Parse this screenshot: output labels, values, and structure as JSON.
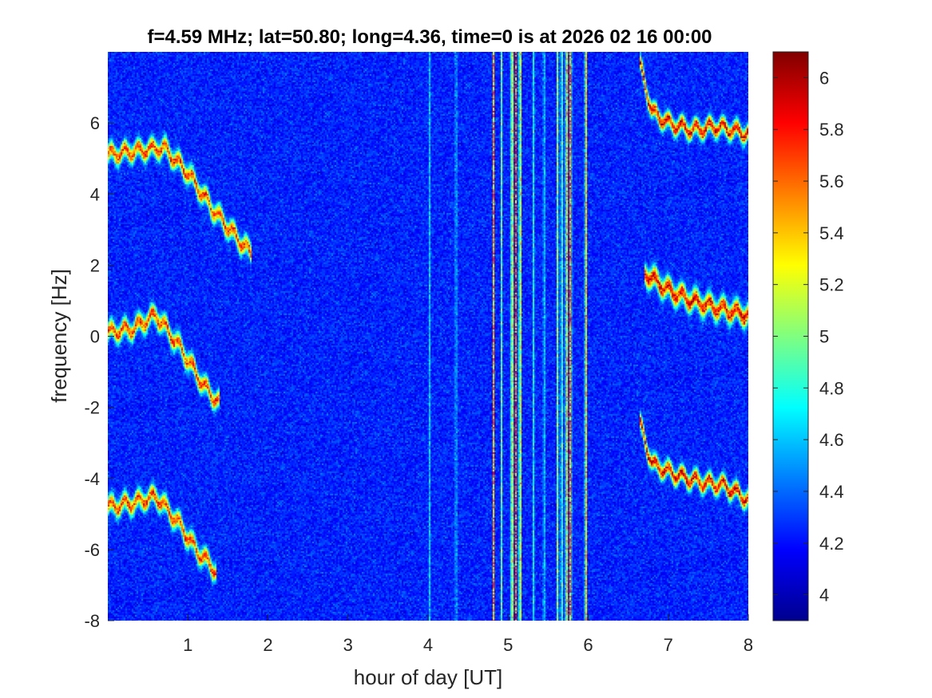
{
  "chart_data": {
    "type": "heatmap",
    "title": "f=4.59 MHz;  lat=50.80; long=4.36, time=0 is at 2026 02 16 00:00",
    "xlabel": "hour of day [UT]",
    "ylabel": "frequency [Hz]",
    "xlim": [
      0,
      8
    ],
    "ylim": [
      -8,
      8
    ],
    "xticks": [
      "1",
      "2",
      "3",
      "4",
      "5",
      "6",
      "7",
      "8"
    ],
    "xtick_values": [
      1,
      2,
      3,
      4,
      5,
      6,
      7,
      8
    ],
    "yticks": [
      "-8",
      "-6",
      "-4",
      "-2",
      "0",
      "2",
      "4",
      "6"
    ],
    "ytick_values": [
      -8,
      -6,
      -4,
      -2,
      0,
      2,
      4,
      6
    ],
    "colorbar": {
      "colormap": "jet",
      "clim": [
        3.9,
        6.1
      ],
      "ticks": [
        "4",
        "4.2",
        "4.4",
        "4.6",
        "4.8",
        "5",
        "5.2",
        "5.4",
        "5.6",
        "5.8",
        "6"
      ],
      "tick_values": [
        4,
        4.2,
        4.4,
        4.6,
        4.8,
        5,
        5.2,
        5.4,
        5.6,
        5.8,
        6
      ]
    },
    "background_level": 4.25,
    "traces": [
      {
        "points": [
          [
            0,
            5.1
          ],
          [
            0.3,
            5.2
          ],
          [
            0.7,
            5.3
          ],
          [
            1.0,
            4.6
          ],
          [
            1.3,
            3.6
          ],
          [
            1.6,
            2.8
          ],
          [
            1.8,
            2.3
          ]
        ],
        "peak": 5.8,
        "width": 0.22
      },
      {
        "points": [
          [
            0,
            0.1
          ],
          [
            0.3,
            0.2
          ],
          [
            0.6,
            0.6
          ],
          [
            0.9,
            -0.3
          ],
          [
            1.2,
            -1.4
          ],
          [
            1.4,
            -1.9
          ]
        ],
        "peak": 5.8,
        "width": 0.22
      },
      {
        "points": [
          [
            0,
            -4.8
          ],
          [
            0.3,
            -4.7
          ],
          [
            0.6,
            -4.5
          ],
          [
            0.9,
            -5.3
          ],
          [
            1.1,
            -6.0
          ],
          [
            1.35,
            -6.6
          ]
        ],
        "peak": 5.8,
        "width": 0.22
      },
      {
        "points": [
          [
            6.65,
            7.6
          ],
          [
            6.8,
            6.3
          ],
          [
            7.0,
            6.0
          ],
          [
            7.3,
            5.8
          ],
          [
            7.6,
            5.9
          ],
          [
            8.0,
            5.7
          ]
        ],
        "peak": 5.95,
        "width": 0.2
      },
      {
        "points": [
          [
            6.7,
            1.8
          ],
          [
            7.0,
            1.3
          ],
          [
            7.3,
            1.0
          ],
          [
            7.6,
            0.8
          ],
          [
            8.0,
            0.6
          ]
        ],
        "peak": 5.95,
        "width": 0.25
      },
      {
        "points": [
          [
            6.65,
            -2.5
          ],
          [
            6.8,
            -3.6
          ],
          [
            7.1,
            -3.9
          ],
          [
            7.4,
            -4.1
          ],
          [
            7.7,
            -4.2
          ],
          [
            8.0,
            -4.6
          ]
        ],
        "peak": 5.95,
        "width": 0.2
      }
    ],
    "vertical_lines": [
      {
        "x": 4.02,
        "level": 4.65
      },
      {
        "x": 4.35,
        "level": 4.7
      },
      {
        "x": 4.82,
        "level": 5.7
      },
      {
        "x": 4.92,
        "level": 5.1
      },
      {
        "x": 5.05,
        "level": 6.0
      },
      {
        "x": 5.1,
        "level": 6.05
      },
      {
        "x": 5.15,
        "level": 5.9
      },
      {
        "x": 5.32,
        "level": 4.9
      },
      {
        "x": 5.45,
        "level": 4.8
      },
      {
        "x": 5.62,
        "level": 5.3
      },
      {
        "x": 5.67,
        "level": 5.2
      },
      {
        "x": 5.73,
        "level": 5.9
      },
      {
        "x": 5.78,
        "level": 6.05
      },
      {
        "x": 5.97,
        "level": 5.8
      }
    ]
  }
}
